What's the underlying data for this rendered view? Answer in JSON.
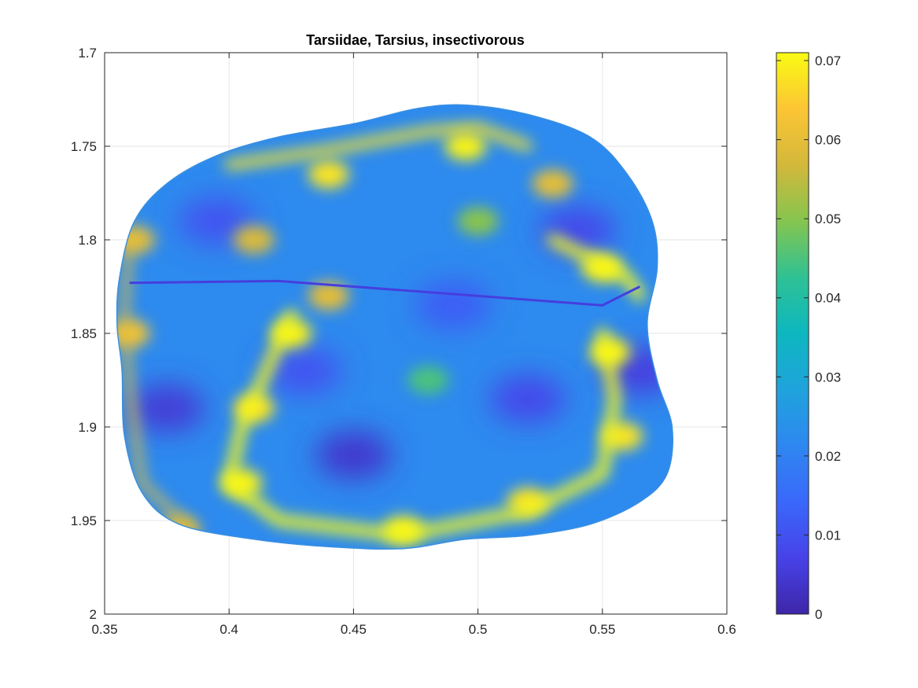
{
  "chart_data": {
    "type": "heatmap",
    "title": "Tarsiidae, Tarsius, insectivorous",
    "xlabel": "",
    "ylabel": "",
    "xlim": [
      0.35,
      0.6
    ],
    "ylim": [
      1.7,
      2.0
    ],
    "y_reversed": true,
    "x_ticks": [
      "0.35",
      "0.4",
      "0.45",
      "0.5",
      "0.55",
      "0.6"
    ],
    "y_ticks": [
      "1.7",
      "1.75",
      "1.8",
      "1.85",
      "1.9",
      "1.95",
      "2"
    ],
    "grid": true,
    "colormap": "parula",
    "colorbar": {
      "range": [
        0,
        0.071
      ],
      "ticks": [
        "0",
        "0.01",
        "0.02",
        "0.03",
        "0.04",
        "0.05",
        "0.06",
        "0.07"
      ]
    },
    "surface_outline": [
      [
        0.356,
        1.82
      ],
      [
        0.362,
        1.79
      ],
      [
        0.375,
        1.77
      ],
      [
        0.395,
        1.755
      ],
      [
        0.42,
        1.745
      ],
      [
        0.45,
        1.738
      ],
      [
        0.475,
        1.73
      ],
      [
        0.495,
        1.728
      ],
      [
        0.52,
        1.733
      ],
      [
        0.545,
        1.745
      ],
      [
        0.56,
        1.765
      ],
      [
        0.57,
        1.79
      ],
      [
        0.572,
        1.815
      ],
      [
        0.568,
        1.845
      ],
      [
        0.572,
        1.875
      ],
      [
        0.578,
        1.9
      ],
      [
        0.576,
        1.925
      ],
      [
        0.565,
        1.94
      ],
      [
        0.545,
        1.952
      ],
      [
        0.52,
        1.958
      ],
      [
        0.495,
        1.96
      ],
      [
        0.47,
        1.965
      ],
      [
        0.44,
        1.964
      ],
      [
        0.41,
        1.96
      ],
      [
        0.38,
        1.952
      ],
      [
        0.365,
        1.935
      ],
      [
        0.358,
        1.905
      ],
      [
        0.357,
        1.87
      ],
      [
        0.355,
        1.845
      ]
    ],
    "ridge_line": [
      [
        0.36,
        1.823
      ],
      [
        0.42,
        1.822
      ],
      [
        0.5,
        1.83
      ],
      [
        0.55,
        1.835
      ],
      [
        0.565,
        1.825
      ]
    ],
    "hotspots": [
      {
        "x": 0.495,
        "y": 1.75,
        "value": 0.07
      },
      {
        "x": 0.44,
        "y": 1.765,
        "value": 0.068
      },
      {
        "x": 0.55,
        "y": 1.815,
        "value": 0.07
      },
      {
        "x": 0.53,
        "y": 1.77,
        "value": 0.06
      },
      {
        "x": 0.425,
        "y": 1.85,
        "value": 0.07
      },
      {
        "x": 0.41,
        "y": 1.89,
        "value": 0.068
      },
      {
        "x": 0.405,
        "y": 1.93,
        "value": 0.07
      },
      {
        "x": 0.47,
        "y": 1.955,
        "value": 0.07
      },
      {
        "x": 0.52,
        "y": 1.94,
        "value": 0.068
      },
      {
        "x": 0.553,
        "y": 1.86,
        "value": 0.07
      },
      {
        "x": 0.558,
        "y": 1.905,
        "value": 0.068
      },
      {
        "x": 0.36,
        "y": 1.85,
        "value": 0.062
      },
      {
        "x": 0.362,
        "y": 1.8,
        "value": 0.06
      },
      {
        "x": 0.44,
        "y": 1.83,
        "value": 0.06
      },
      {
        "x": 0.41,
        "y": 1.8,
        "value": 0.058
      },
      {
        "x": 0.48,
        "y": 1.875,
        "value": 0.045
      },
      {
        "x": 0.5,
        "y": 1.79,
        "value": 0.05
      },
      {
        "x": 0.38,
        "y": 1.955,
        "value": 0.058
      }
    ],
    "coldspots": [
      {
        "x": 0.375,
        "y": 1.89,
        "value": 0.005
      },
      {
        "x": 0.45,
        "y": 1.915,
        "value": 0.004
      },
      {
        "x": 0.52,
        "y": 1.885,
        "value": 0.008
      },
      {
        "x": 0.395,
        "y": 1.79,
        "value": 0.01
      },
      {
        "x": 0.54,
        "y": 1.795,
        "value": 0.008
      },
      {
        "x": 0.49,
        "y": 1.835,
        "value": 0.012
      },
      {
        "x": 0.565,
        "y": 1.87,
        "value": 0.006
      },
      {
        "x": 0.43,
        "y": 1.87,
        "value": 0.01
      }
    ]
  }
}
